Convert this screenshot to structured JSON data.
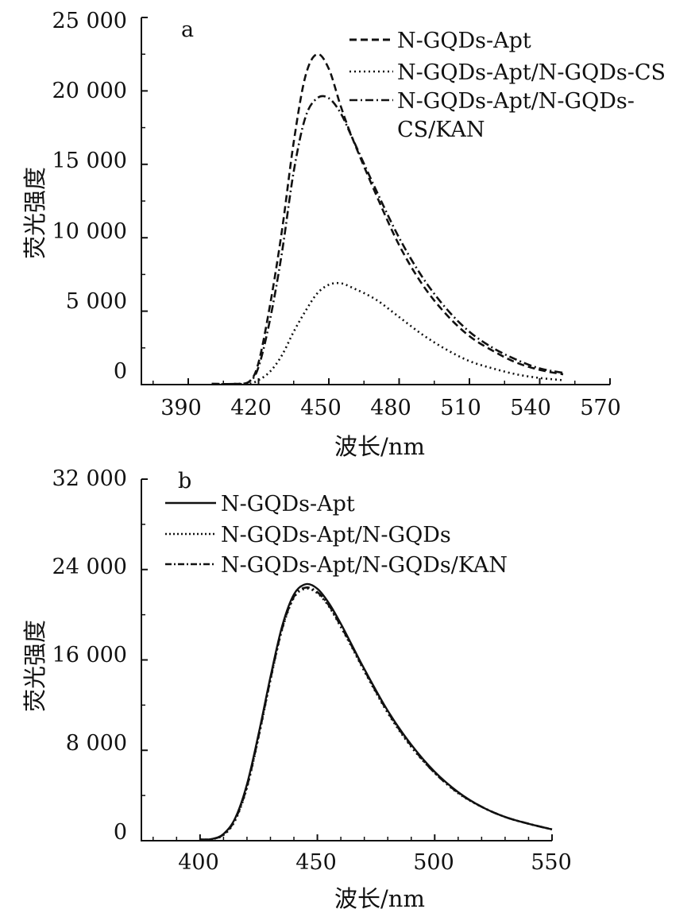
{
  "chart_data": [
    {
      "panel": "a",
      "type": "line",
      "xlabel": "波长/nm",
      "ylabel": "荧光强度",
      "xlim": [
        370,
        570
      ],
      "ylim": [
        0,
        25000
      ],
      "xticks": [
        "390",
        "420",
        "450",
        "480",
        "510",
        "540",
        "570"
      ],
      "yticks": [
        "0",
        "5 000",
        "10 000",
        "15 000",
        "20 000",
        "25 000"
      ],
      "legend_position": "top-right",
      "series": [
        {
          "name": "N-GQDs-Apt",
          "style": "dashed",
          "x": [
            400,
            410,
            416,
            420,
            425,
            430,
            435,
            440,
            445,
            450,
            455,
            460,
            470,
            480,
            490,
            500,
            510,
            520,
            530,
            540,
            550
          ],
          "y": [
            50,
            50,
            200,
            1500,
            5500,
            10500,
            16500,
            21000,
            22500,
            21500,
            19000,
            16800,
            13000,
            9500,
            6800,
            4800,
            3300,
            2300,
            1500,
            1000,
            700
          ]
        },
        {
          "name": "N-GQDs-Apt/N-GQDs-CS",
          "style": "dotted",
          "x": [
            400,
            410,
            416,
            420,
            425,
            430,
            435,
            440,
            445,
            450,
            455,
            460,
            470,
            480,
            490,
            500,
            510,
            520,
            530,
            540,
            550
          ],
          "y": [
            30,
            30,
            60,
            300,
            900,
            2000,
            3600,
            5000,
            6200,
            6800,
            6900,
            6600,
            5800,
            4600,
            3400,
            2400,
            1600,
            1100,
            700,
            450,
            300
          ]
        },
        {
          "name": "N-GQDs-Apt/N-GQDs-CS/KAN",
          "style": "dash-dot",
          "x": [
            400,
            410,
            416,
            420,
            425,
            430,
            435,
            440,
            445,
            450,
            455,
            460,
            470,
            480,
            490,
            500,
            510,
            520,
            530,
            540,
            550
          ],
          "y": [
            50,
            50,
            200,
            1200,
            4500,
            9000,
            14500,
            18200,
            19500,
            19500,
            18500,
            16800,
            13300,
            10000,
            7300,
            5200,
            3600,
            2500,
            1700,
            1100,
            800
          ]
        }
      ]
    },
    {
      "panel": "b",
      "type": "line",
      "xlabel": "波长/nm",
      "ylabel": "荧光强度",
      "xlim": [
        375,
        550
      ],
      "ylim": [
        0,
        32000
      ],
      "xticks": [
        "400",
        "450",
        "500",
        "550"
      ],
      "yticks": [
        "0",
        "8 000",
        "16 000",
        "24 000",
        "32 000"
      ],
      "legend_position": "top-left",
      "series": [
        {
          "name": "N-GQDs-Apt",
          "style": "solid",
          "x": [
            400,
            405,
            410,
            415,
            420,
            425,
            430,
            435,
            440,
            445,
            450,
            455,
            460,
            465,
            470,
            480,
            490,
            500,
            510,
            520,
            530,
            540,
            550
          ],
          "y": [
            100,
            150,
            600,
            2000,
            5000,
            9500,
            14500,
            19000,
            21800,
            22700,
            22300,
            21000,
            19200,
            17200,
            15200,
            11500,
            8500,
            6100,
            4300,
            3000,
            2100,
            1500,
            1000
          ]
        },
        {
          "name": "N-GQDs-Apt/N-GQDs",
          "style": "dotted",
          "x": [
            400,
            405,
            410,
            415,
            420,
            425,
            430,
            435,
            440,
            445,
            450,
            455,
            460,
            465,
            470,
            480,
            490,
            500,
            510,
            520,
            530,
            540,
            550
          ],
          "y": [
            100,
            140,
            500,
            1800,
            4700,
            9200,
            14200,
            18700,
            21500,
            22300,
            21900,
            20700,
            18900,
            17000,
            15000,
            11300,
            8300,
            6000,
            4200,
            3000,
            2100,
            1500,
            1000
          ]
        },
        {
          "name": "N-GQDs-Apt/N-GQDs/KAN",
          "style": "dash-dot",
          "x": [
            400,
            405,
            410,
            415,
            420,
            425,
            430,
            435,
            440,
            445,
            450,
            455,
            460,
            465,
            470,
            480,
            490,
            500,
            510,
            520,
            530,
            540,
            550
          ],
          "y": [
            100,
            140,
            550,
            1900,
            4800,
            9300,
            14300,
            18800,
            21600,
            22400,
            22000,
            20800,
            19000,
            17100,
            15100,
            11400,
            8400,
            6000,
            4250,
            3000,
            2100,
            1500,
            1000
          ]
        }
      ]
    }
  ]
}
